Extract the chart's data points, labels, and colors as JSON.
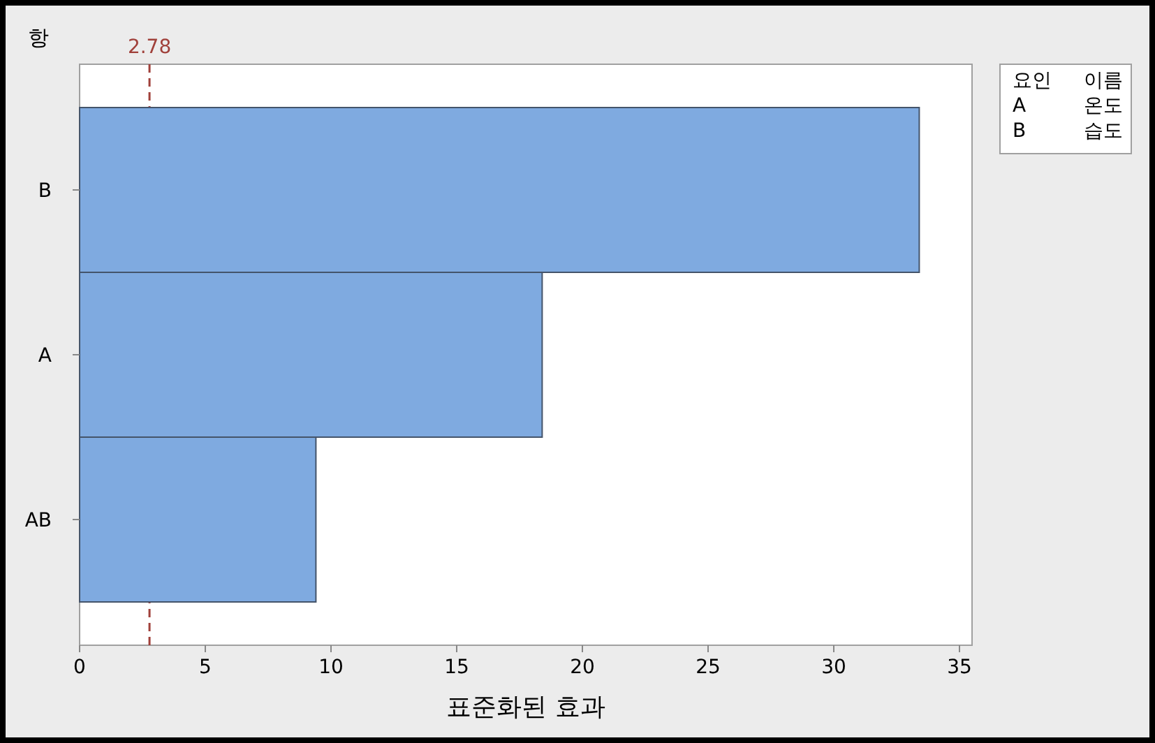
{
  "chart_data": {
    "type": "bar",
    "orientation": "horizontal",
    "ylabel": "항",
    "xlabel": "표준화된 효과",
    "categories": [
      "B",
      "A",
      "AB"
    ],
    "values": [
      33.4,
      18.4,
      9.4
    ],
    "color": "#7faae0",
    "xlim": [
      0,
      35.5
    ],
    "xticks": [
      0,
      5,
      10,
      15,
      20,
      25,
      30,
      35
    ],
    "ref_lines": [
      {
        "axis": "x",
        "value": 2.78,
        "label": "2.78",
        "color": "#a0403a",
        "line_style": "dashed"
      }
    ],
    "annotations": [
      "요인",
      "이름",
      "A",
      "온도",
      "B",
      "습도"
    ],
    "grid": false
  }
}
